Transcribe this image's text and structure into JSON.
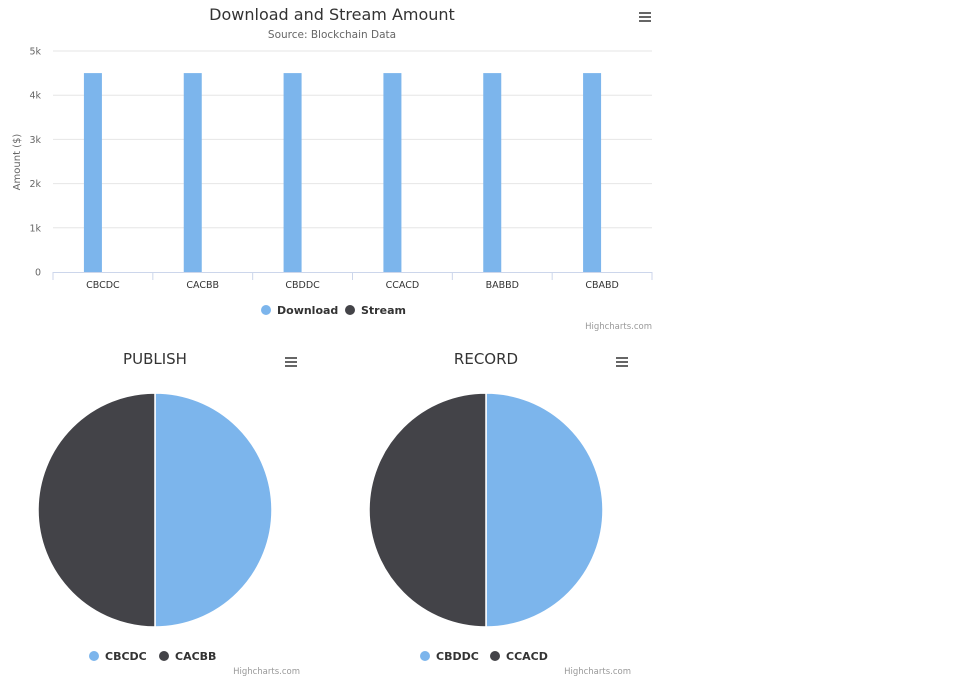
{
  "colors": {
    "series_blue": "#7cb5ec",
    "series_dark": "#434348",
    "grid": "#e6e6e6",
    "axis": "#ccd6eb",
    "text": "#333333",
    "muted": "#666666",
    "credit": "#999999"
  },
  "credits": "Highcharts.com",
  "menu_icon": "hamburger-menu-icon",
  "chart_data": [
    {
      "type": "bar",
      "title": "Download and Stream Amount",
      "subtitle": "Source: Blockchain Data",
      "ylabel": "Amount ($)",
      "xlabel": "",
      "categories": [
        "CBCDC",
        "CACBB",
        "CBDDC",
        "CCACD",
        "BABBD",
        "CBABD"
      ],
      "series": [
        {
          "name": "Download",
          "values": [
            4500,
            4500,
            4500,
            4500,
            4500,
            4500
          ],
          "color": "#7cb5ec"
        },
        {
          "name": "Stream",
          "values": [
            0,
            0,
            0,
            0,
            0,
            0
          ],
          "color": "#434348"
        }
      ],
      "ylim": [
        0,
        5000
      ],
      "yticks": [
        {
          "value": 0,
          "label": "0"
        },
        {
          "value": 1000,
          "label": "1k"
        },
        {
          "value": 2000,
          "label": "2k"
        },
        {
          "value": 3000,
          "label": "3k"
        },
        {
          "value": 4000,
          "label": "4k"
        },
        {
          "value": 5000,
          "label": "5k"
        }
      ],
      "grid": true,
      "legend": "bottom-center"
    },
    {
      "type": "pie",
      "title": "PUBLISH",
      "labels": [
        "CBCDC",
        "CACBB"
      ],
      "values": [
        50,
        50
      ],
      "colors": [
        "#7cb5ec",
        "#434348"
      ],
      "legend": "bottom-center"
    },
    {
      "type": "pie",
      "title": "RECORD",
      "labels": [
        "CBDDC",
        "CCACD"
      ],
      "values": [
        50,
        50
      ],
      "colors": [
        "#7cb5ec",
        "#434348"
      ],
      "legend": "bottom-center"
    }
  ]
}
